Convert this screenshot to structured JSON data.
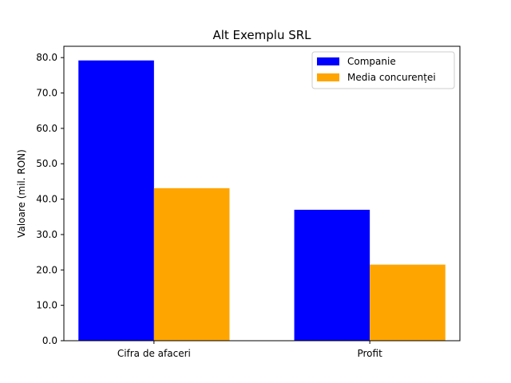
{
  "chart_data": {
    "type": "bar",
    "title": "Alt Exemplu SRL",
    "xlabel": "",
    "ylabel": "Valoare (mil. RON)",
    "categories": [
      "Cifra de afaceri",
      "Profit"
    ],
    "series": [
      {
        "name": "Companie",
        "color": "#0000ff",
        "values": [
          79.2,
          37.0
        ]
      },
      {
        "name": "Media concurenței",
        "color": "#ffa500",
        "values": [
          43.1,
          21.5
        ]
      }
    ],
    "ylim": [
      0,
      83.2
    ],
    "yticks": [
      "0.0",
      "10.0",
      "20.0",
      "30.0",
      "40.0",
      "50.0",
      "60.0",
      "70.0",
      "80.0"
    ],
    "grid": false,
    "legend": "top-right"
  }
}
